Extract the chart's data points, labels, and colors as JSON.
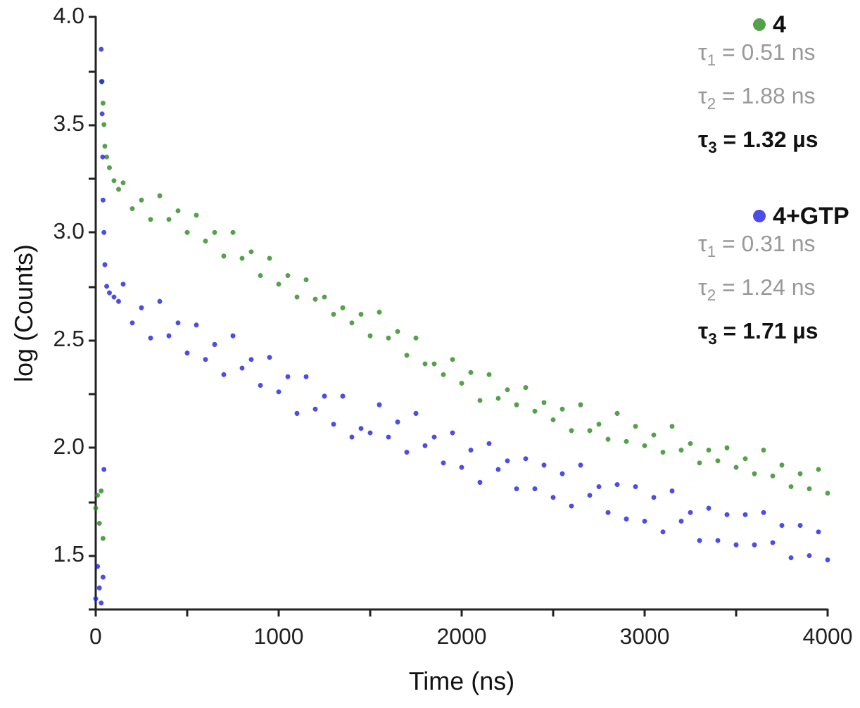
{
  "chart_data": {
    "type": "scatter",
    "xlabel": "Time (ns)",
    "ylabel": "log (Counts)",
    "xlim": [
      0,
      4000
    ],
    "xticks": [
      0,
      {
        "value": 500,
        "label": null
      },
      1000,
      {
        "value": 1500,
        "label": null
      },
      2000,
      {
        "value": 2500,
        "label": null
      },
      3000,
      {
        "value": 3500,
        "label": null
      },
      4000
    ],
    "ylim": [
      1.25,
      4.0
    ],
    "yticks": [
      {
        "value": 1.25,
        "label": null
      },
      1.5,
      {
        "value": 1.75,
        "label": null
      },
      {
        "value": 2,
        "label": "2.0"
      },
      {
        "value": 2.25,
        "label": null
      },
      2.5,
      {
        "value": 2.75,
        "label": null
      },
      {
        "value": 3,
        "label": "3.0"
      },
      {
        "value": 3.25,
        "label": null
      },
      3.5,
      {
        "value": 3.75,
        "label": null
      },
      {
        "value": 4,
        "label": "4.0"
      }
    ],
    "grid": false,
    "legend": "top right",
    "marker": "circle",
    "annotations": [
      "τ$_{1}$ = 0.51 ns",
      "τ$_{2}$ = 1.88 ns",
      "τ$_{3}$ = 1.32 µs",
      "τ$_{1}$ = 0.31 ns",
      "τ$_{2}$ = 1.24 ns",
      "τ$_{3}$ = 1.71 µs"
    ],
    "series": [
      {
        "name": "4",
        "color": "#2a8a1e",
        "x": [
          0,
          10,
          20,
          30,
          40,
          35,
          40,
          45,
          50,
          60,
          75,
          100,
          125,
          150,
          200,
          250,
          300,
          350,
          400,
          450,
          500,
          550,
          600,
          650,
          700,
          750,
          800,
          850,
          900,
          950,
          1000,
          1050,
          1100,
          1150,
          1200,
          1250,
          1300,
          1350,
          1400,
          1450,
          1500,
          1550,
          1600,
          1650,
          1700,
          1750,
          1800,
          1850,
          1900,
          1950,
          2000,
          2050,
          2100,
          2150,
          2200,
          2250,
          2300,
          2350,
          2400,
          2450,
          2500,
          2550,
          2600,
          2650,
          2700,
          2750,
          2800,
          2850,
          2900,
          2950,
          3000,
          3050,
          3100,
          3150,
          3200,
          3250,
          3300,
          3350,
          3400,
          3450,
          3500,
          3550,
          3600,
          3650,
          3700,
          3750,
          3800,
          3850,
          3900,
          3950,
          4000
        ],
        "values": [
          1.72,
          1.78,
          1.65,
          1.8,
          1.58,
          3.7,
          3.6,
          3.5,
          3.4,
          3.35,
          3.3,
          3.24,
          3.2,
          3.23,
          3.11,
          3.15,
          3.06,
          3.17,
          3.06,
          3.1,
          3.0,
          3.08,
          2.96,
          3.0,
          2.89,
          3.0,
          2.88,
          2.91,
          2.8,
          2.88,
          2.76,
          2.8,
          2.7,
          2.78,
          2.69,
          2.7,
          2.62,
          2.65,
          2.58,
          2.62,
          2.52,
          2.63,
          2.51,
          2.54,
          2.43,
          2.51,
          2.39,
          2.39,
          2.34,
          2.41,
          2.3,
          2.35,
          2.22,
          2.34,
          2.23,
          2.27,
          2.2,
          2.28,
          2.17,
          2.21,
          2.13,
          2.18,
          2.08,
          2.2,
          2.08,
          2.11,
          2.04,
          2.16,
          2.03,
          2.1,
          2.01,
          2.06,
          1.98,
          2.1,
          1.99,
          2.02,
          1.93,
          1.99,
          1.94,
          2.0,
          1.91,
          1.95,
          1.88,
          1.99,
          1.87,
          1.92,
          1.82,
          1.88,
          1.81,
          1.9,
          1.79
        ]
      },
      {
        "name": "4+GTP",
        "color": "#1f1fe6",
        "x": [
          0,
          10,
          20,
          30,
          40,
          45,
          30,
          32,
          35,
          38,
          40,
          45,
          50,
          60,
          75,
          100,
          125,
          150,
          200,
          250,
          300,
          350,
          400,
          450,
          500,
          550,
          600,
          650,
          700,
          750,
          800,
          850,
          900,
          950,
          1000,
          1050,
          1100,
          1150,
          1200,
          1250,
          1300,
          1350,
          1400,
          1450,
          1500,
          1550,
          1600,
          1650,
          1700,
          1750,
          1800,
          1850,
          1900,
          1950,
          2000,
          2050,
          2100,
          2150,
          2200,
          2250,
          2300,
          2350,
          2400,
          2450,
          2500,
          2550,
          2600,
          2650,
          2700,
          2750,
          2800,
          2850,
          2900,
          2950,
          3000,
          3050,
          3100,
          3150,
          3200,
          3250,
          3300,
          3350,
          3400,
          3450,
          3500,
          3550,
          3600,
          3650,
          3700,
          3750,
          3800,
          3850,
          3900,
          3950,
          4000
        ],
        "values": [
          1.3,
          1.45,
          1.35,
          1.28,
          1.4,
          1.9,
          3.85,
          3.7,
          3.55,
          3.35,
          3.15,
          3.0,
          2.85,
          2.75,
          2.72,
          2.7,
          2.68,
          2.76,
          2.58,
          2.65,
          2.51,
          2.68,
          2.52,
          2.58,
          2.44,
          2.57,
          2.41,
          2.48,
          2.34,
          2.52,
          2.37,
          2.41,
          2.29,
          2.42,
          2.26,
          2.33,
          2.16,
          2.33,
          2.18,
          2.24,
          2.11,
          2.24,
          2.05,
          2.09,
          2.07,
          2.2,
          2.05,
          2.12,
          1.98,
          2.16,
          2.01,
          2.05,
          1.93,
          2.07,
          1.91,
          1.99,
          1.84,
          2.02,
          1.9,
          1.94,
          1.81,
          1.95,
          1.81,
          1.92,
          1.77,
          1.88,
          1.73,
          1.92,
          1.78,
          1.82,
          1.7,
          1.83,
          1.67,
          1.82,
          1.66,
          1.77,
          1.61,
          1.8,
          1.66,
          1.7,
          1.57,
          1.72,
          1.57,
          1.69,
          1.55,
          1.69,
          1.55,
          1.7,
          1.56,
          1.64,
          1.49,
          1.64,
          1.5,
          1.61,
          1.48
        ]
      }
    ]
  }
}
